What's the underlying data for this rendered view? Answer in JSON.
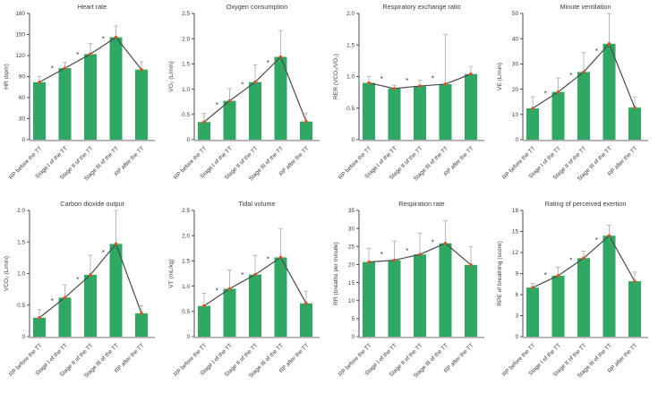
{
  "figure": {
    "background": "#ffffff",
    "description": "Cardiopulmonary responses across treadmill test stages"
  },
  "style": {
    "bar_color": "#2fa863",
    "dot_color": "#d4572a",
    "line_color": "#4a4a4a",
    "error_bar_color": "#b8b8b8",
    "axis_color": "#3a3a3a",
    "baseline_color": "#ababab",
    "text_color": "#3a3a3a",
    "significance_marker": "*"
  },
  "chart_data": [
    {
      "id": "heart-rate",
      "type": "bar",
      "title": "Heart rate",
      "ylabel": "HR (bpm)",
      "categories": [
        "RP before the TT",
        "Stage I of the TT",
        "Stage II of the TT",
        "Stage III of the TT",
        "RP after the TT"
      ],
      "values": [
        82,
        102,
        122,
        146,
        100
      ],
      "errors": [
        8,
        8,
        15,
        16,
        11
      ],
      "ylim": [
        0,
        180
      ],
      "yticks": [
        0,
        30,
        60,
        90,
        120,
        150,
        180
      ],
      "ytick_labels": [
        "0",
        "30",
        "60",
        "90",
        "120",
        "150",
        "180"
      ],
      "significance_segments": [
        [
          0,
          1
        ],
        [
          1,
          2
        ],
        [
          2,
          3
        ]
      ]
    },
    {
      "id": "oxygen-consumption",
      "type": "bar",
      "title": "Oxygen consumption",
      "ylabel": "VO₂ (L/min)",
      "categories": [
        "RP before the TT",
        "Stage I of the TT",
        "Stage II of the TT",
        "Stage III of the TT",
        "RP after the TT"
      ],
      "values": [
        0.35,
        0.77,
        1.14,
        1.64,
        0.36
      ],
      "errors": [
        0.17,
        0.24,
        0.34,
        0.52,
        0.16
      ],
      "ylim": [
        0,
        2.5
      ],
      "yticks": [
        0,
        0.5,
        1.0,
        1.5,
        2.0,
        2.5
      ],
      "ytick_labels": [
        "0",
        "0.5",
        "1.0",
        "1.5",
        "2.0",
        "2.5"
      ],
      "significance_segments": [
        [
          0,
          1
        ],
        [
          1,
          2
        ],
        [
          2,
          3
        ]
      ]
    },
    {
      "id": "respiratory-exchange-ratio",
      "type": "bar",
      "title": "Respiratory exchange ratio",
      "ylabel": "RER (VCO₂/VO₂)",
      "categories": [
        "RP before the TT",
        "Stage I of the TT",
        "Stage II of the TT",
        "Stage III of the TT",
        "RP after the TT"
      ],
      "values": [
        0.9,
        0.81,
        0.85,
        0.88,
        1.04
      ],
      "errors": [
        0.1,
        0.05,
        0.09,
        0.79,
        0.12
      ],
      "ylim": [
        0,
        2.0
      ],
      "yticks": [
        0,
        0.5,
        1.0,
        1.5,
        2.0
      ],
      "ytick_labels": [
        "0",
        "0.5",
        "1.0",
        "1.5",
        "2.0"
      ],
      "significance_segments": [
        [
          0,
          1
        ],
        [
          1,
          2
        ],
        [
          2,
          3
        ]
      ]
    },
    {
      "id": "minute-ventilation",
      "type": "bar",
      "title": "Minute ventilation",
      "ylabel": "VE (L/min)",
      "categories": [
        "RP before the TT",
        "Stage I of the TT",
        "Stage II of the TT",
        "Stage III of the TT",
        "RP after the TT"
      ],
      "values": [
        12.4,
        18.9,
        26.8,
        38.0,
        12.7
      ],
      "errors": [
        4.6,
        5.5,
        7.7,
        11.9,
        4.2
      ],
      "ylim": [
        0,
        50
      ],
      "yticks": [
        0,
        10,
        20,
        30,
        40,
        50
      ],
      "ytick_labels": [
        "0",
        "10",
        "20",
        "30",
        "40",
        "50"
      ],
      "significance_segments": [
        [
          0,
          1
        ],
        [
          1,
          2
        ],
        [
          2,
          3
        ]
      ]
    },
    {
      "id": "carbon-dioxide-output",
      "type": "bar",
      "title": "Carbon dioxide output",
      "ylabel": "VCO₂ (L/min)",
      "categories": [
        "RP before the TT",
        "Stage I of the TT",
        "Stage II of the TT",
        "Stage III of the TT",
        "RP after the TT"
      ],
      "values": [
        0.3,
        0.62,
        0.98,
        1.47,
        0.37
      ],
      "errors": [
        0.13,
        0.2,
        0.31,
        0.53,
        0.12
      ],
      "ylim": [
        0,
        2.0
      ],
      "yticks": [
        0,
        0.5,
        1.0,
        1.5,
        2.0
      ],
      "ytick_labels": [
        "0",
        "0.5",
        "1.0",
        "1.5",
        "2.0"
      ],
      "significance_segments": [
        [
          0,
          1
        ],
        [
          1,
          2
        ],
        [
          2,
          3
        ]
      ]
    },
    {
      "id": "tidal-volume",
      "type": "bar",
      "title": "Tidal volume",
      "ylabel": "VT (mL/kg)",
      "categories": [
        "RP before the TT",
        "Stage I of the TT",
        "Stage II of the TT",
        "Stage III of the TT",
        "RP after the TT"
      ],
      "values": [
        0.61,
        0.95,
        1.23,
        1.57,
        0.66
      ],
      "errors": [
        0.25,
        0.37,
        0.38,
        0.57,
        0.24
      ],
      "ylim": [
        0,
        2.5
      ],
      "yticks": [
        0,
        0.5,
        1.0,
        1.5,
        2.0,
        2.5
      ],
      "ytick_labels": [
        "0",
        "0.5",
        "1.0",
        "1.5",
        "2.0",
        "2.5"
      ],
      "significance_segments": [
        [
          0,
          1
        ],
        [
          1,
          2
        ],
        [
          2,
          3
        ]
      ]
    },
    {
      "id": "respiration-rate",
      "type": "bar",
      "title": "Respiration rate",
      "ylabel": "RR (breaths per minute)",
      "categories": [
        "RP before the TT",
        "Stage I of the TT",
        "Stage II of the TT",
        "Stage III of the TT",
        "RP after the TT"
      ],
      "values": [
        20.7,
        21.2,
        22.8,
        25.9,
        19.9
      ],
      "errors": [
        3.8,
        5.3,
        5.9,
        6.3,
        5.1
      ],
      "ylim": [
        0,
        35
      ],
      "yticks": [
        0,
        5,
        10,
        15,
        20,
        25,
        30,
        35
      ],
      "ytick_labels": [
        "0",
        "5",
        "10",
        "15",
        "20",
        "25",
        "30",
        "35"
      ],
      "significance_segments": [
        [
          0,
          1
        ],
        [
          1,
          2
        ],
        [
          2,
          3
        ]
      ]
    },
    {
      "id": "rating-of-perceived-exertion",
      "type": "bar",
      "title": "Rating of perceived exertion",
      "ylabel": "RPE of breathing (score)",
      "categories": [
        "RP before the TT",
        "Stage I of the TT",
        "Stage II of the TT",
        "Stage III of the TT",
        "RP after the TT"
      ],
      "values": [
        7.0,
        8.7,
        11.2,
        14.4,
        7.9
      ],
      "errors": [
        0.6,
        1.2,
        1.0,
        1.5,
        1.3
      ],
      "ylim": [
        0,
        18
      ],
      "yticks": [
        0,
        3,
        6,
        9,
        12,
        15,
        18
      ],
      "ytick_labels": [
        "0",
        "3",
        "6",
        "9",
        "12",
        "15",
        "18"
      ],
      "significance_segments": [
        [
          0,
          1
        ],
        [
          1,
          2
        ],
        [
          2,
          3
        ]
      ]
    }
  ]
}
